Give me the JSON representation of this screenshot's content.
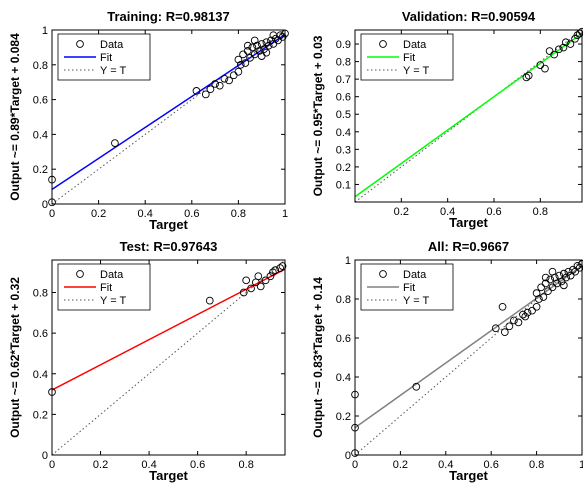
{
  "chart_data": [
    {
      "type": "scatter",
      "title": "Training: R=0.98137",
      "xlabel": "Target",
      "ylabel": "Output ~= 0.89*Target + 0.084",
      "xlim": [
        0,
        1
      ],
      "ylim": [
        0,
        1
      ],
      "xticks": [
        "0",
        "0.2",
        "0.4",
        "0.6",
        "0.8",
        "1"
      ],
      "yticks": [
        "0",
        "0.2",
        "0.4",
        "0.6",
        "0.8",
        "1"
      ],
      "xtick_values": [
        0,
        0.2,
        0.4,
        0.6,
        0.8,
        1
      ],
      "ytick_values": [
        0,
        0.2,
        0.4,
        0.6,
        0.8,
        1
      ],
      "fit": {
        "slope": 0.89,
        "intercept": 0.084,
        "color": "#0000ff"
      },
      "legend": {
        "placement": "top-left",
        "entries": [
          "Data",
          "Fit",
          "Y = T"
        ]
      },
      "points": [
        [
          0,
          0.14
        ],
        [
          0,
          0.01
        ],
        [
          0.27,
          0.35
        ],
        [
          0.62,
          0.65
        ],
        [
          0.66,
          0.63
        ],
        [
          0.68,
          0.66
        ],
        [
          0.7,
          0.69
        ],
        [
          0.72,
          0.68
        ],
        [
          0.74,
          0.72
        ],
        [
          0.76,
          0.71
        ],
        [
          0.78,
          0.74
        ],
        [
          0.8,
          0.83
        ],
        [
          0.81,
          0.8
        ],
        [
          0.82,
          0.86
        ],
        [
          0.83,
          0.81
        ],
        [
          0.84,
          0.88
        ],
        [
          0.85,
          0.84
        ],
        [
          0.86,
          0.9
        ],
        [
          0.87,
          0.86
        ],
        [
          0.88,
          0.91
        ],
        [
          0.89,
          0.88
        ],
        [
          0.9,
          0.92
        ],
        [
          0.91,
          0.89
        ],
        [
          0.92,
          0.93
        ],
        [
          0.93,
          0.91
        ],
        [
          0.94,
          0.94
        ],
        [
          0.95,
          0.92
        ],
        [
          0.96,
          0.95
        ],
        [
          0.97,
          0.94
        ],
        [
          0.98,
          0.97
        ],
        [
          0.99,
          0.96
        ],
        [
          1,
          0.98
        ],
        [
          0.87,
          0.94
        ],
        [
          0.9,
          0.85
        ],
        [
          0.84,
          0.91
        ],
        [
          0.8,
          0.76
        ],
        [
          0.92,
          0.87
        ],
        [
          0.95,
          0.97
        ]
      ]
    },
    {
      "type": "scatter",
      "title": "Validation: R=0.90594",
      "xlabel": "Target",
      "ylabel": "Output ~= 0.95*Target + 0.03",
      "xlim": [
        0,
        0.98
      ],
      "ylim": [
        0,
        0.98
      ],
      "xticks": [
        "0.2",
        "0.4",
        "0.6",
        "0.8"
      ],
      "yticks": [
        "0.1",
        "0.2",
        "0.3",
        "0.4",
        "0.5",
        "0.6",
        "0.7",
        "0.8",
        "0.9"
      ],
      "xtick_values": [
        0.2,
        0.4,
        0.6,
        0.8
      ],
      "ytick_values": [
        0.1,
        0.2,
        0.3,
        0.4,
        0.5,
        0.6,
        0.7,
        0.8,
        0.9
      ],
      "fit": {
        "slope": 0.95,
        "intercept": 0.03,
        "color": "#00ff00"
      },
      "legend": {
        "placement": "top-left",
        "entries": [
          "Data",
          "Fit",
          "Y = T"
        ]
      },
      "points": [
        [
          0.74,
          0.71
        ],
        [
          0.75,
          0.72
        ],
        [
          0.8,
          0.78
        ],
        [
          0.82,
          0.76
        ],
        [
          0.84,
          0.86
        ],
        [
          0.86,
          0.84
        ],
        [
          0.88,
          0.87
        ],
        [
          0.9,
          0.88
        ],
        [
          0.91,
          0.91
        ],
        [
          0.93,
          0.9
        ],
        [
          0.95,
          0.93
        ],
        [
          0.96,
          0.95
        ],
        [
          0.97,
          0.96
        ],
        [
          0.98,
          0.97
        ]
      ]
    },
    {
      "type": "scatter",
      "title": "Test: R=0.97643",
      "xlabel": "Target",
      "ylabel": "Output ~= 0.62*Target + 0.32",
      "xlim": [
        0,
        0.96
      ],
      "ylim": [
        0,
        0.96
      ],
      "xticks": [
        "0",
        "0.2",
        "0.4",
        "0.6",
        "0.8"
      ],
      "yticks": [
        "0",
        "0.2",
        "0.4",
        "0.6",
        "0.8"
      ],
      "xtick_values": [
        0,
        0.2,
        0.4,
        0.6,
        0.8
      ],
      "ytick_values": [
        0,
        0.2,
        0.4,
        0.6,
        0.8
      ],
      "fit": {
        "slope": 0.62,
        "intercept": 0.32,
        "color": "#ff0000"
      },
      "legend": {
        "placement": "top-left",
        "entries": [
          "Data",
          "Fit",
          "Y = T"
        ]
      },
      "points": [
        [
          0,
          0.31
        ],
        [
          0.65,
          0.76
        ],
        [
          0.79,
          0.8
        ],
        [
          0.8,
          0.86
        ],
        [
          0.82,
          0.82
        ],
        [
          0.84,
          0.85
        ],
        [
          0.85,
          0.88
        ],
        [
          0.86,
          0.83
        ],
        [
          0.88,
          0.86
        ],
        [
          0.9,
          0.88
        ],
        [
          0.91,
          0.9
        ],
        [
          0.92,
          0.91
        ],
        [
          0.94,
          0.92
        ],
        [
          0.95,
          0.93
        ]
      ]
    },
    {
      "type": "scatter",
      "title": "All: R=0.9667",
      "xlabel": "Target",
      "ylabel": "Output ~= 0.83*Target + 0.14",
      "xlim": [
        0,
        1
      ],
      "ylim": [
        0,
        1
      ],
      "xticks": [
        "0",
        "0.2",
        "0.4",
        "0.6",
        "0.8",
        "1"
      ],
      "yticks": [
        "0",
        "0.2",
        "0.4",
        "0.6",
        "0.8",
        "1"
      ],
      "xtick_values": [
        0,
        0.2,
        0.4,
        0.6,
        0.8,
        1
      ],
      "ytick_values": [
        0,
        0.2,
        0.4,
        0.6,
        0.8,
        1
      ],
      "fit": {
        "slope": 0.83,
        "intercept": 0.14,
        "color": "#808080"
      },
      "legend": {
        "placement": "top-left",
        "entries": [
          "Data",
          "Fit",
          "Y = T"
        ]
      },
      "points": [
        [
          0,
          0.31
        ],
        [
          0,
          0.14
        ],
        [
          0,
          0.01
        ],
        [
          0.27,
          0.35
        ],
        [
          0.62,
          0.65
        ],
        [
          0.65,
          0.76
        ],
        [
          0.66,
          0.63
        ],
        [
          0.68,
          0.66
        ],
        [
          0.7,
          0.69
        ],
        [
          0.72,
          0.68
        ],
        [
          0.74,
          0.72
        ],
        [
          0.75,
          0.71
        ],
        [
          0.76,
          0.73
        ],
        [
          0.78,
          0.74
        ],
        [
          0.8,
          0.83
        ],
        [
          0.81,
          0.8
        ],
        [
          0.82,
          0.86
        ],
        [
          0.83,
          0.81
        ],
        [
          0.84,
          0.88
        ],
        [
          0.85,
          0.84
        ],
        [
          0.86,
          0.9
        ],
        [
          0.87,
          0.86
        ],
        [
          0.88,
          0.91
        ],
        [
          0.89,
          0.88
        ],
        [
          0.9,
          0.92
        ],
        [
          0.91,
          0.89
        ],
        [
          0.92,
          0.93
        ],
        [
          0.93,
          0.91
        ],
        [
          0.94,
          0.94
        ],
        [
          0.95,
          0.92
        ],
        [
          0.96,
          0.95
        ],
        [
          0.97,
          0.94
        ],
        [
          0.98,
          0.97
        ],
        [
          0.99,
          0.96
        ],
        [
          1,
          0.98
        ],
        [
          0.87,
          0.94
        ],
        [
          0.84,
          0.91
        ],
        [
          0.8,
          0.76
        ],
        [
          0.92,
          0.87
        ]
      ]
    }
  ]
}
